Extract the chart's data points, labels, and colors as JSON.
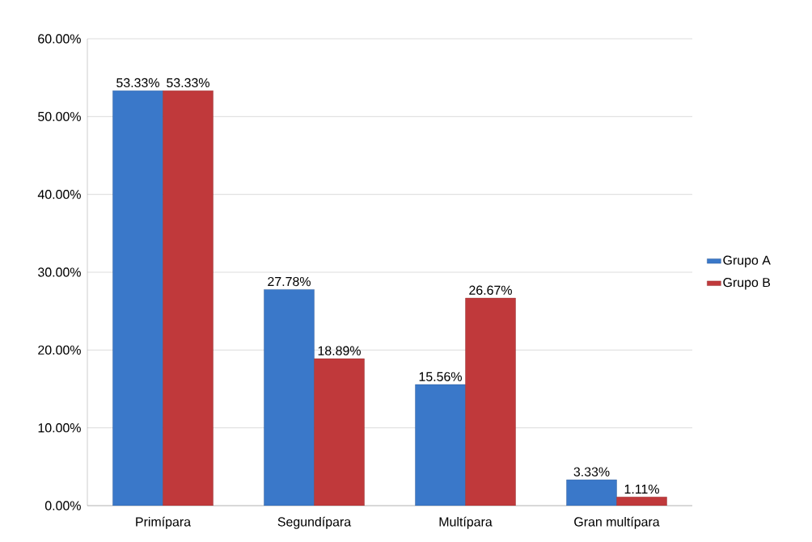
{
  "chart_data": {
    "type": "bar",
    "categories": [
      "Primípara",
      "Segundípara",
      "Multípara",
      "Gran multípara"
    ],
    "series": [
      {
        "name": "Grupo A",
        "color": "#3a78c9",
        "values": [
          53.33,
          27.78,
          15.56,
          3.33
        ],
        "value_labels": [
          "53.33%",
          "27.78%",
          "15.56%",
          "3.33%"
        ]
      },
      {
        "name": "Grupo B",
        "color": "#c0393b",
        "values": [
          53.33,
          18.89,
          26.67,
          1.11
        ],
        "value_labels": [
          "53.33%",
          "18.89%",
          "26.67%",
          "1.11%"
        ]
      }
    ],
    "ylim": [
      0,
      60
    ],
    "yticks": [
      {
        "value": 0,
        "label": "0.00%"
      },
      {
        "value": 10,
        "label": "10.00%"
      },
      {
        "value": 20,
        "label": "20.00%"
      },
      {
        "value": 30,
        "label": "30.00%"
      },
      {
        "value": 40,
        "label": "40.00%"
      },
      {
        "value": 50,
        "label": "50.00%"
      },
      {
        "value": 60,
        "label": "60.00%"
      }
    ],
    "grid": "y",
    "legend": "right"
  }
}
